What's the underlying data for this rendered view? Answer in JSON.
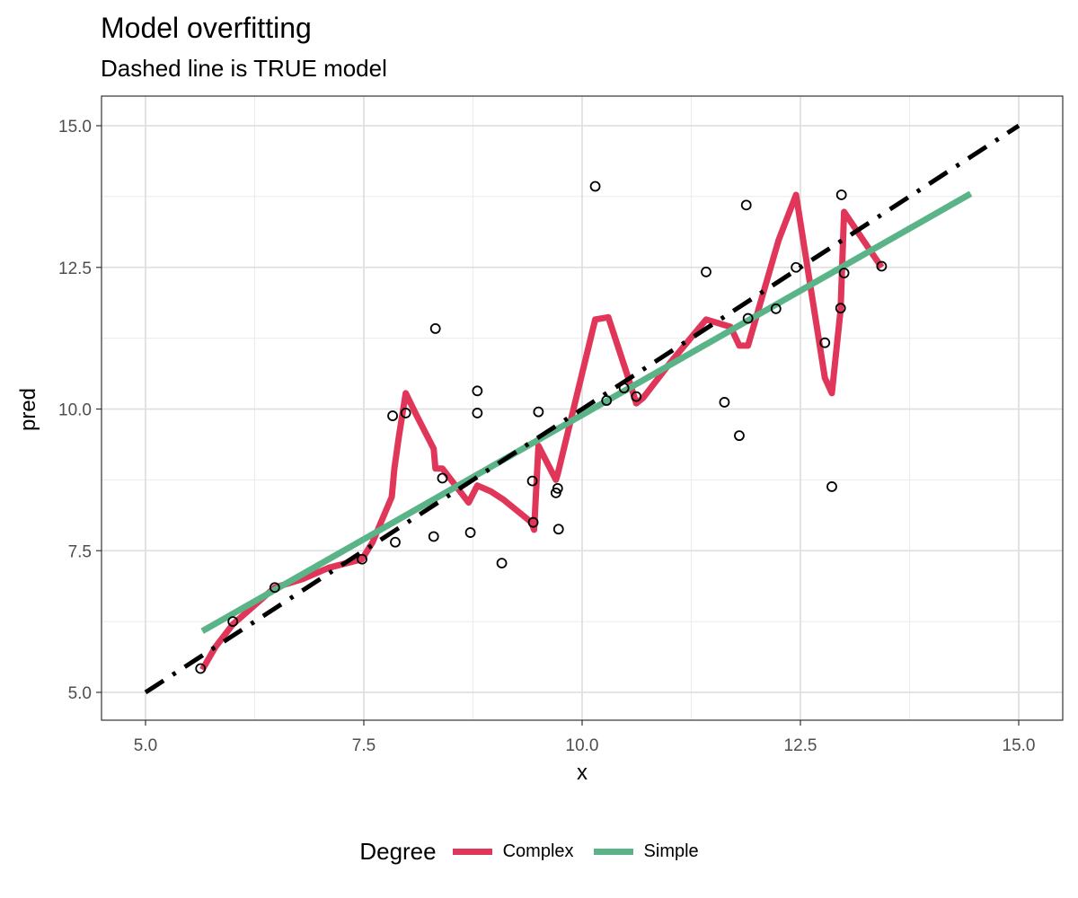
{
  "chart_data": {
    "type": "line",
    "title": "Model overfitting",
    "subtitle": "Dashed line is TRUE model",
    "xlabel": "x",
    "ylabel": "pred",
    "xlim": [
      5.0,
      15.0
    ],
    "ylim": [
      5.0,
      15.0
    ],
    "x_ticks": [
      "5.0",
      "7.5",
      "10.0",
      "12.5",
      "15.0"
    ],
    "y_ticks": [
      "5.0",
      "7.5",
      "10.0",
      "12.5",
      "15.0"
    ],
    "grid": true,
    "legend_position": "bottom",
    "legend_title": "Degree",
    "true_model": {
      "style": "dashed",
      "color": "#000000",
      "x": [
        5.0,
        15.0
      ],
      "y": [
        5.0,
        15.0
      ]
    },
    "series": [
      {
        "name": "Complex",
        "color": "#E0365A",
        "x": [
          5.65,
          5.8,
          6.0,
          6.48,
          6.8,
          7.1,
          7.48,
          7.6,
          7.82,
          7.85,
          7.9,
          7.98,
          8.1,
          8.3,
          8.32,
          8.4,
          8.7,
          8.8,
          8.95,
          9.1,
          9.42,
          9.45,
          9.5,
          9.7,
          9.72,
          10.15,
          10.3,
          10.55,
          10.62,
          10.7,
          11.0,
          11.42,
          11.7,
          11.8,
          11.9,
          12.25,
          12.45,
          12.78,
          12.86,
          12.96,
          13.0,
          13.43
        ],
        "y": [
          5.4,
          5.8,
          6.2,
          6.85,
          7.0,
          7.2,
          7.35,
          7.65,
          8.45,
          8.95,
          9.5,
          10.28,
          9.9,
          9.3,
          8.95,
          8.95,
          8.35,
          8.65,
          8.55,
          8.4,
          8.0,
          7.87,
          9.35,
          8.75,
          8.85,
          11.58,
          11.62,
          10.45,
          10.1,
          10.2,
          10.8,
          11.58,
          11.45,
          11.12,
          11.12,
          12.98,
          13.78,
          10.55,
          10.28,
          11.75,
          13.48,
          12.5
        ]
      },
      {
        "name": "Simple",
        "color": "#5BB388",
        "x": [
          5.65,
          14.45
        ],
        "y": [
          6.08,
          13.8
        ]
      }
    ],
    "points": {
      "x": [
        5.63,
        6.0,
        6.48,
        7.48,
        7.83,
        7.86,
        7.98,
        8.3,
        8.32,
        8.4,
        8.72,
        8.8,
        8.8,
        9.08,
        9.43,
        9.44,
        9.5,
        9.7,
        9.72,
        9.73,
        10.15,
        10.28,
        10.48,
        10.62,
        11.42,
        11.63,
        11.8,
        11.88,
        11.9,
        12.22,
        12.45,
        12.78,
        12.86,
        12.96,
        12.97,
        13.0,
        13.43
      ],
      "y": [
        5.42,
        6.25,
        6.85,
        7.35,
        9.88,
        7.65,
        9.93,
        7.75,
        11.42,
        8.78,
        7.82,
        10.32,
        9.93,
        7.28,
        8.73,
        8.0,
        9.95,
        8.52,
        8.6,
        7.88,
        13.93,
        10.15,
        10.37,
        10.22,
        12.42,
        10.12,
        9.53,
        13.6,
        11.6,
        11.77,
        12.5,
        11.17,
        8.63,
        11.78,
        13.78,
        12.4,
        12.52
      ]
    }
  }
}
